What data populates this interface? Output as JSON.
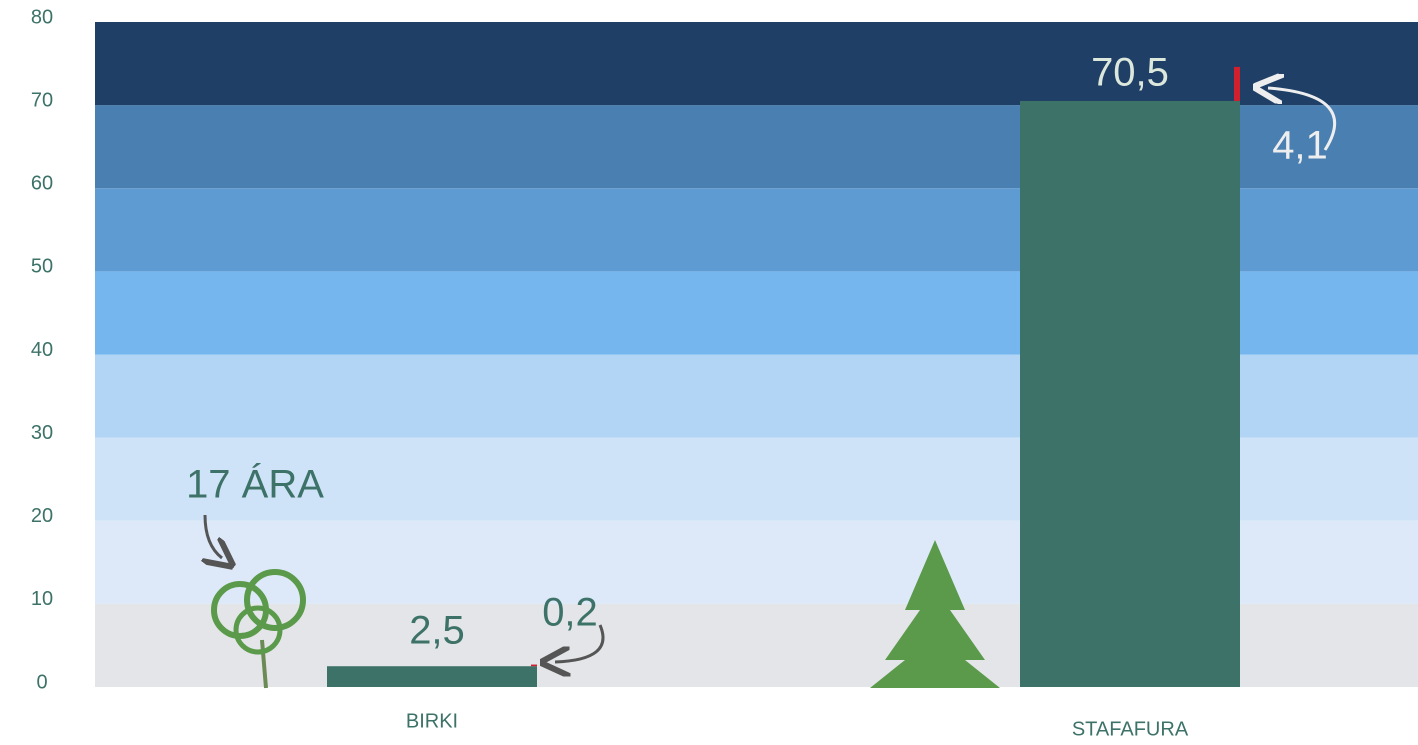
{
  "chart_data": {
    "type": "bar",
    "stacked": true,
    "categories": [
      "BIRKI",
      "STAFAFURA"
    ],
    "series": [
      {
        "color": "#3d7268",
        "values": [
          2.5,
          70.5
        ],
        "value_labels": [
          "2,5",
          "70,5"
        ]
      },
      {
        "color": "#d0202e",
        "values": [
          0.2,
          4.1
        ],
        "value_labels": [
          "0,2",
          "4,1"
        ]
      }
    ],
    "annotation": "17 ÁRA",
    "ylim": [
      0,
      80
    ],
    "yticks": [
      0,
      10,
      20,
      30,
      40,
      50,
      60,
      70,
      80
    ],
    "band_colors": [
      "#e3e5e8",
      "#dde9f8",
      "#cfe3f8",
      "#b3d5f5",
      "#75b6ee",
      "#5f9bd3",
      "#4a7fb2",
      "#1f3f66"
    ]
  }
}
